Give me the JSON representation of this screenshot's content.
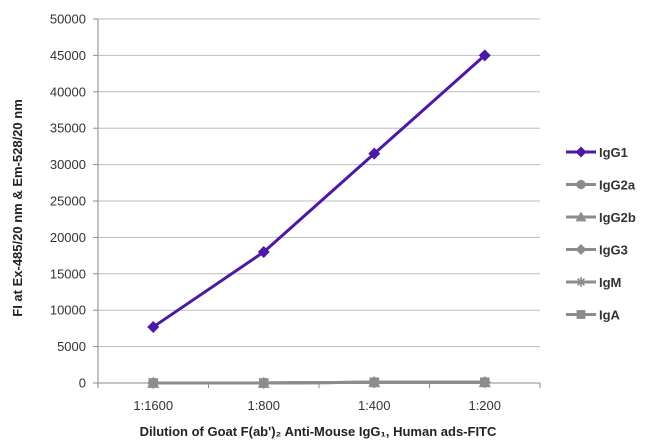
{
  "chart_data": {
    "type": "line",
    "categories": [
      "1:1600",
      "1:800",
      "1:400",
      "1:200"
    ],
    "xlabel": "Dilution of Goat F(ab')₂ Anti-Mouse IgG₁, Human ads-FITC",
    "ylabel": "FI at Ex-485/20 nm & Em-528/20 nm",
    "ylim": [
      0,
      50000
    ],
    "yticks": [
      0,
      5000,
      10000,
      15000,
      20000,
      25000,
      30000,
      35000,
      40000,
      45000,
      50000
    ],
    "grid": true,
    "legend_position": "right",
    "series": [
      {
        "name": "IgG1",
        "values": [
          7700,
          18000,
          31500,
          45000
        ],
        "color": "#4b1aa4",
        "marker": "diamond"
      },
      {
        "name": "IgG2a",
        "values": [
          0,
          0,
          100,
          100
        ],
        "color": "#8c8c8c",
        "marker": "circle"
      },
      {
        "name": "IgG2b",
        "values": [
          0,
          0,
          100,
          100
        ],
        "color": "#8c8c8c",
        "marker": "triangle"
      },
      {
        "name": "IgG3",
        "values": [
          0,
          0,
          100,
          100
        ],
        "color": "#8c8c8c",
        "marker": "diamond"
      },
      {
        "name": "IgM",
        "values": [
          0,
          0,
          100,
          100
        ],
        "color": "#8c8c8c",
        "marker": "star"
      },
      {
        "name": "IgA",
        "values": [
          0,
          0,
          100,
          100
        ],
        "color": "#8c8c8c",
        "marker": "square"
      }
    ]
  }
}
